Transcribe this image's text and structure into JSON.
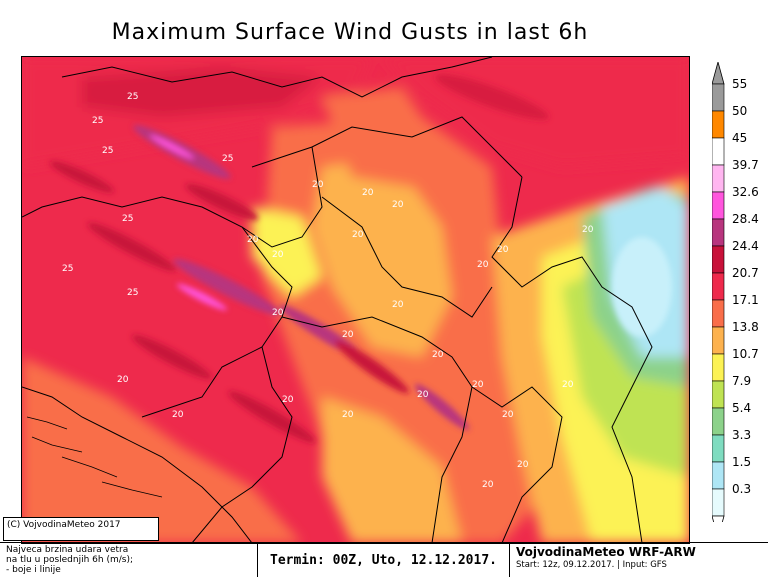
{
  "title": "Maximum Surface Wind Gusts in last 6h",
  "colorbar": {
    "labels": [
      "55",
      "50",
      "45",
      "39.7",
      "32.6",
      "28.4",
      "24.4",
      "20.7",
      "17.1",
      "13.8",
      "10.7",
      "7.9",
      "5.4",
      "3.3",
      "1.5",
      "0.3"
    ],
    "colors": [
      "#9a9a9a",
      "#ff8800",
      "#ffffff",
      "#ffb6f0",
      "#ff55dd",
      "#b8357e",
      "#c8123a",
      "#ee2a4c",
      "#f96e4a",
      "#fdb24e",
      "#fcf254",
      "#bfe353",
      "#8cd28a",
      "#7fdcc0",
      "#aee6f5",
      "#e6fbfd"
    ]
  },
  "contour_labels": [
    "25",
    "25",
    "25",
    "25",
    "25",
    "25",
    "25",
    "20",
    "20",
    "20",
    "20",
    "20",
    "20",
    "20",
    "20",
    "20",
    "20",
    "20",
    "20",
    "20",
    "20",
    "20",
    "20",
    "20",
    "20",
    "20",
    "20",
    "20",
    "20",
    "20"
  ],
  "copyright": "(C) VojvodinaMeteo 2017",
  "footer": {
    "desc_line1": "Najveca brzina udara vetra",
    "desc_line2": "na tlu u poslednjih 6h (m/s);",
    "desc_line3": "- boje i linije",
    "term": "Termin: 00Z, Uto, 12.12.2017.",
    "model": "VojvodinaMeteo WRF-ARW",
    "start": "Start: 12z, 09.12.2017. | Input: GFS"
  }
}
